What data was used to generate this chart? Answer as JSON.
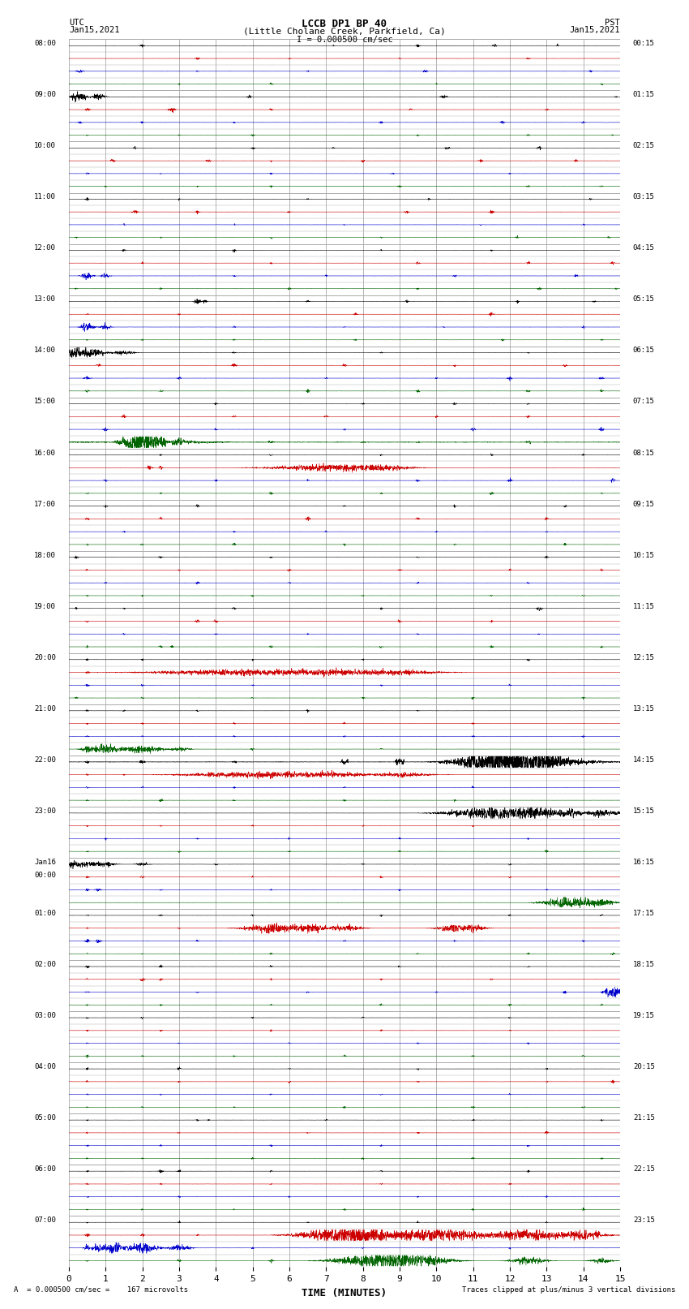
{
  "title_line1": "LCCB DP1 BP 40",
  "title_line2": "(Little Cholane Creek, Parkfield, Ca)",
  "scale_label": "I = 0.000500 cm/sec",
  "left_label": "UTC",
  "left_date": "Jan15,2021",
  "right_label": "PST",
  "right_date": "Jan15,2021",
  "footer_left": "A  = 0.000500 cm/sec =    167 microvolts",
  "footer_right": "Traces clipped at plus/minus 3 vertical divisions",
  "xlabel": "TIME (MINUTES)",
  "bg_color": "#ffffff",
  "grid_color": "#aaaaaa",
  "utc_labels": [
    "08:00",
    "09:00",
    "10:00",
    "11:00",
    "12:00",
    "13:00",
    "14:00",
    "15:00",
    "16:00",
    "17:00",
    "18:00",
    "19:00",
    "20:00",
    "21:00",
    "22:00",
    "23:00",
    "Jan16\n00:00",
    "01:00",
    "02:00",
    "03:00",
    "04:00",
    "05:00",
    "06:00",
    "07:00"
  ],
  "pst_labels": [
    "00:15",
    "01:15",
    "02:15",
    "03:15",
    "04:15",
    "05:15",
    "06:15",
    "07:15",
    "08:15",
    "09:15",
    "10:15",
    "11:15",
    "12:15",
    "13:15",
    "14:15",
    "15:15",
    "16:15",
    "17:15",
    "18:15",
    "19:15",
    "20:15",
    "21:15",
    "22:15",
    "23:15"
  ],
  "colors": [
    "black",
    "#cc0000",
    "#0000cc",
    "#006400"
  ],
  "n_hours": 24,
  "rows_per_hour": 4,
  "x_min": 0,
  "x_max": 15,
  "spike_amplitude": 0.35,
  "noise_amplitude": 0.003
}
